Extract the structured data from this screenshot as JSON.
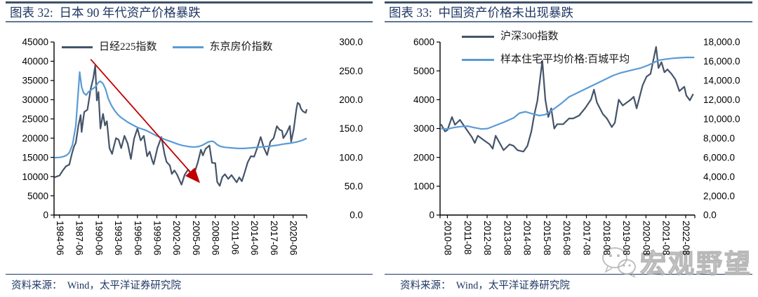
{
  "panels": [
    {
      "title": "图表 32:  日本 90 年代资产价格暴跌",
      "source": "资料来源：  Wind，太平洋证券研究院"
    },
    {
      "title": "图表 33:  中国资产价格未出现暴跌",
      "source": "资料来源：  Wind，太平洋证券研究院"
    }
  ],
  "watermark": {
    "icon": "wechat-icon",
    "text": "宏观野望"
  },
  "colors": {
    "title_navy": "#1F3864",
    "rule_dark": "#3E5067",
    "rule_light": "#5E7696",
    "series_dark": "#44546A",
    "series_blue": "#5B9BD5",
    "arrow_red": "#C00000",
    "axis_black": "#000000",
    "watermark_gray": "#BDBDBD"
  },
  "chart_data": [
    {
      "type": "line",
      "title": "日本 90 年代资产价格暴跌",
      "legend_position": "top-horizontal",
      "grid": false,
      "x_axis": {
        "tick_labels": [
          "1984-06",
          "1987-06",
          "1990-06",
          "1993-06",
          "1996-06",
          "1999-06",
          "2002-06",
          "2005-06",
          "2008-06",
          "2011-06",
          "2014-06",
          "2017-06",
          "2020-06"
        ],
        "tick_values": [
          1984.5,
          1987.5,
          1990.5,
          1993.5,
          1996.5,
          1999.5,
          2002.5,
          2005.5,
          2008.5,
          2011.5,
          2014.5,
          2017.5,
          2020.5
        ]
      },
      "left_axis": {
        "min": 0,
        "max": 45000,
        "tick_labels": [
          "0",
          "5000",
          "10000",
          "15000",
          "20000",
          "25000",
          "30000",
          "35000",
          "40000",
          "45000"
        ],
        "tick_values": [
          0,
          5000,
          10000,
          15000,
          20000,
          25000,
          30000,
          35000,
          40000,
          45000
        ]
      },
      "right_axis": {
        "min": 0,
        "max": 300,
        "tick_labels": [
          "0.0",
          "50.0",
          "100.0",
          "150.0",
          "200.0",
          "250.0",
          "300.0"
        ],
        "tick_values": [
          0,
          50,
          100,
          150,
          200,
          250,
          300
        ]
      },
      "series": [
        {
          "name": "日经225指数",
          "axis": "left",
          "color": "#44546A",
          "x": [
            1983.7,
            1984.5,
            1985.0,
            1985.5,
            1986.0,
            1986.4,
            1986.7,
            1987.0,
            1987.4,
            1987.75,
            1987.9,
            1988.3,
            1988.8,
            1989.3,
            1989.7,
            1990.0,
            1990.25,
            1990.5,
            1990.8,
            1991.2,
            1991.5,
            1991.8,
            1992.2,
            1992.6,
            1992.8,
            1993.2,
            1993.6,
            1994.0,
            1994.5,
            1995.0,
            1995.5,
            1996.0,
            1996.5,
            1997.0,
            1997.5,
            1998.0,
            1998.4,
            1998.8,
            1999.0,
            1999.6,
            2000.2,
            2000.7,
            2001.0,
            2001.5,
            2001.8,
            2002.2,
            2002.6,
            2003.3,
            2003.8,
            2004.3,
            2004.8,
            2005.3,
            2005.8,
            2006.3,
            2006.6,
            2007.0,
            2007.6,
            2008.0,
            2008.5,
            2008.8,
            2009.2,
            2009.6,
            2010.0,
            2010.5,
            2011.0,
            2011.3,
            2011.8,
            2012.2,
            2012.6,
            2013.0,
            2013.5,
            2014.0,
            2014.5,
            2015.0,
            2015.5,
            2016.0,
            2016.5,
            2017.0,
            2017.5,
            2018.0,
            2018.4,
            2018.8,
            2019.0,
            2019.5,
            2020.0,
            2020.2,
            2020.6,
            2021.0,
            2021.2,
            2021.5,
            2021.7,
            2022.0,
            2022.2,
            2022.45,
            2022.6
          ],
          "y": [
            9800,
            10300,
            11600,
            12700,
            13100,
            15900,
            17700,
            18800,
            23300,
            26000,
            21600,
            26800,
            27400,
            32800,
            35600,
            38900,
            29800,
            32000,
            22500,
            26300,
            23300,
            24400,
            17400,
            15900,
            17400,
            20000,
            19600,
            17400,
            20600,
            18600,
            14600,
            19900,
            22500,
            19400,
            20600,
            15300,
            16500,
            14100,
            13200,
            17500,
            20300,
            15700,
            13800,
            12900,
            10700,
            11600,
            10600,
            7900,
            10500,
            11800,
            10800,
            11000,
            13600,
            17000,
            15500,
            17200,
            18100,
            13600,
            13500,
            8600,
            7600,
            9900,
            10600,
            9400,
            10400,
            9700,
            8500,
            9800,
            8800,
            10900,
            13700,
            15300,
            15200,
            17600,
            20300,
            17500,
            15600,
            19100,
            20000,
            23100,
            22200,
            21900,
            20000,
            21300,
            23200,
            19100,
            22300,
            27400,
            29200,
            28800,
            27700,
            27000,
            26800,
            26600,
            27500
          ]
        },
        {
          "name": "东京房价指数",
          "axis": "right",
          "color": "#5B9BD5",
          "x": [
            1983.7,
            1984.5,
            1985.0,
            1985.5,
            1986.0,
            1986.5,
            1987.0,
            1987.3,
            1987.6,
            1987.9,
            1988.2,
            1988.6,
            1989.0,
            1989.5,
            1990.0,
            1990.5,
            1990.8,
            1991.2,
            1991.6,
            1992.0,
            1992.5,
            1993.0,
            1993.5,
            1994.0,
            1994.5,
            1995.0,
            1995.5,
            1996.0,
            1996.5,
            1997.0,
            1997.5,
            1998.0,
            1998.5,
            1999.0,
            1999.5,
            2000.0,
            2000.5,
            2001.0,
            2001.5,
            2002.0,
            2002.5,
            2003.0,
            2003.5,
            2004.0,
            2004.5,
            2005.0,
            2005.5,
            2006.0,
            2006.5,
            2007.0,
            2007.5,
            2008.0,
            2008.3,
            2008.8,
            2009.3,
            2010.0,
            2011.0,
            2012.0,
            2013.0,
            2014.0,
            2015.0,
            2016.0,
            2017.0,
            2018.0,
            2019.0,
            2020.0,
            2021.0,
            2021.5,
            2022.0,
            2022.6
          ],
          "y": [
            99.5,
            100,
            101,
            103,
            108,
            122,
            155,
            200,
            248,
            222,
            212,
            208,
            214,
            218,
            222,
            230,
            232,
            228,
            218,
            202,
            190,
            181,
            174,
            169,
            165,
            161,
            158,
            155,
            152,
            150,
            148,
            146,
            143,
            140,
            137,
            135,
            132,
            130,
            128,
            126,
            124,
            122,
            120.5,
            119.5,
            118.5,
            118,
            118,
            119,
            121,
            124,
            127,
            128,
            127,
            122,
            119,
            117.5,
            116.5,
            115.5,
            115.5,
            116.5,
            117.5,
            118.5,
            119.5,
            121,
            123,
            124.5,
            126.5,
            128,
            130,
            133
          ]
        }
      ],
      "annotation": {
        "type": "arrow",
        "axis": "left",
        "color": "#C00000",
        "from_x": 1989.3,
        "from_y": 40500,
        "to_x": 2005.9,
        "to_y": 8800
      }
    },
    {
      "type": "line",
      "title": "中国资产价格未出现暴跌",
      "legend_position": "top-left-stacked",
      "grid": false,
      "x_axis": {
        "tick_labels": [
          "2010-08",
          "2011-08",
          "2012-08",
          "2013-08",
          "2014-08",
          "2015-08",
          "2016-08",
          "2017-08",
          "2018-08",
          "2019-08",
          "2020-08",
          "2021-08",
          "2022-08"
        ],
        "tick_values": [
          2010.67,
          2011.67,
          2012.67,
          2013.67,
          2014.67,
          2015.67,
          2016.67,
          2017.67,
          2018.67,
          2019.67,
          2020.67,
          2021.67,
          2022.67
        ]
      },
      "left_axis": {
        "min": 0,
        "max": 6000,
        "tick_labels": [
          "0",
          "1000",
          "2000",
          "3000",
          "4000",
          "5000",
          "6000"
        ],
        "tick_values": [
          0,
          1000,
          2000,
          3000,
          4000,
          5000,
          6000
        ]
      },
      "right_axis": {
        "min": 0,
        "max": 18000,
        "tick_labels": [
          "0.0",
          "2,000.0",
          "4,000.0",
          "6,000.0",
          "8,000.0",
          "10,000.0",
          "12,000.0",
          "14,000.0",
          "16,000.0",
          "18,000.0"
        ],
        "tick_values": [
          0,
          2000,
          4000,
          6000,
          8000,
          10000,
          12000,
          14000,
          16000,
          18000
        ]
      },
      "series": [
        {
          "name": "沪深300指数",
          "axis": "left",
          "color": "#44546A",
          "x": [
            2010.35,
            2010.55,
            2010.67,
            2010.9,
            2011.05,
            2011.3,
            2011.6,
            2011.9,
            2012.05,
            2012.2,
            2012.5,
            2012.8,
            2012.95,
            2013.1,
            2013.3,
            2013.5,
            2013.8,
            2014.0,
            2014.2,
            2014.5,
            2014.7,
            2014.9,
            2015.05,
            2015.2,
            2015.45,
            2015.6,
            2015.75,
            2015.9,
            2016.05,
            2016.2,
            2016.5,
            2016.8,
            2017.0,
            2017.3,
            2017.6,
            2017.9,
            2018.05,
            2018.2,
            2018.5,
            2018.7,
            2018.95,
            2019.1,
            2019.3,
            2019.5,
            2019.7,
            2019.9,
            2020.05,
            2020.2,
            2020.5,
            2020.7,
            2020.9,
            2021.18,
            2021.3,
            2021.45,
            2021.6,
            2021.75,
            2021.95,
            2022.15,
            2022.35,
            2022.6,
            2022.7,
            2022.88,
            2023.05
          ],
          "y": [
            3150,
            2900,
            2950,
            3400,
            3130,
            3300,
            3000,
            2700,
            2500,
            2750,
            2600,
            2450,
            2300,
            2750,
            2500,
            2250,
            2450,
            2400,
            2250,
            2200,
            2400,
            2900,
            3500,
            3950,
            5350,
            4000,
            3400,
            3700,
            3000,
            3150,
            3150,
            3350,
            3350,
            3450,
            3700,
            4000,
            4350,
            3900,
            3500,
            3350,
            3050,
            3200,
            4000,
            3800,
            3900,
            4000,
            4100,
            3700,
            4500,
            4800,
            4900,
            5830,
            5100,
            5300,
            4950,
            5050,
            4900,
            4700,
            4300,
            4450,
            4150,
            3980,
            4200
          ]
        },
        {
          "name": "样本住宅平均价格:百城平均",
          "axis": "right",
          "color": "#5B9BD5",
          "x": [
            2010.35,
            2010.67,
            2011.0,
            2011.3,
            2011.7,
            2012.0,
            2012.4,
            2012.7,
            2013.0,
            2013.5,
            2014.0,
            2014.3,
            2014.6,
            2015.0,
            2015.3,
            2015.6,
            2016.0,
            2016.4,
            2016.8,
            2017.0,
            2017.4,
            2017.8,
            2018.0,
            2018.4,
            2018.8,
            2019.0,
            2019.4,
            2019.8,
            2020.0,
            2020.4,
            2020.8,
            2021.0,
            2021.3,
            2021.6,
            2022.0,
            2022.3,
            2022.7,
            2023.1
          ],
          "y": [
            9000,
            8950,
            9100,
            9200,
            9250,
            9100,
            8950,
            9000,
            9250,
            9650,
            10100,
            10600,
            10750,
            10500,
            10350,
            10450,
            11000,
            11600,
            12300,
            12500,
            12900,
            13300,
            13500,
            13900,
            14300,
            14500,
            14800,
            15000,
            15100,
            15300,
            15600,
            15800,
            16100,
            16200,
            16300,
            16350,
            16400,
            16400
          ]
        }
      ],
      "annotation": null
    }
  ]
}
